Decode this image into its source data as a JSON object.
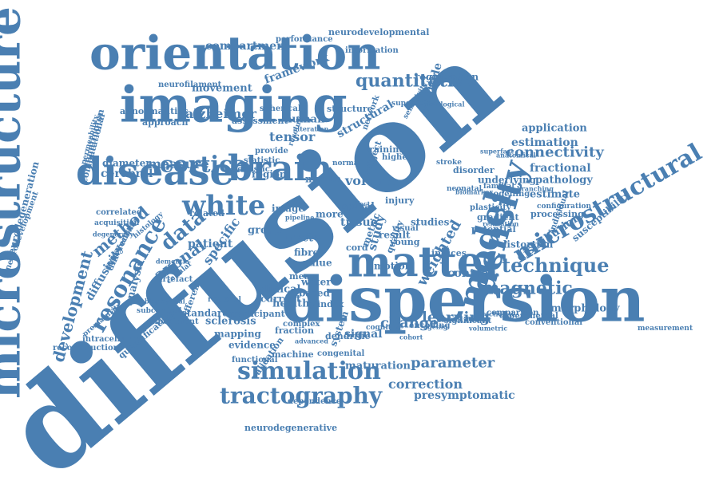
{
  "color": "#4a7fb2",
  "words": [
    "diffusion",
    "dispersion",
    "orientation",
    "imaging",
    "microstructure",
    "disease",
    "brain",
    "matter",
    "model",
    "density",
    "microstructural",
    "simulation",
    "tractography",
    "cortical",
    "white",
    "development",
    "resonance",
    "technique",
    "magnetic",
    "parameter",
    "data",
    "method",
    "connectivity",
    "axonal",
    "alzheimer",
    "quantitative",
    "compartment",
    "framework",
    "registration",
    "tensor",
    "diffusivity",
    "volume",
    "weighted",
    "correction",
    "presymptomatic",
    "signal",
    "change",
    "learning",
    "estimation",
    "application",
    "fractional",
    "pathology",
    "estimate",
    "distribution",
    "susceptibility",
    "morphology",
    "control",
    "distortion",
    "performance",
    "neurodevelopmental",
    "information",
    "movement",
    "neurofilament",
    "abnormalities",
    "assessment",
    "spherical",
    "structure",
    "approach",
    "human",
    "computational",
    "huntington",
    "measure",
    "cerebral",
    "diameter",
    "region",
    "myelin",
    "image",
    "related",
    "group",
    "tissue",
    "spinal",
    "studies",
    "specific",
    "patient",
    "clinical",
    "healthy",
    "sclerosis",
    "mapping",
    "evidence",
    "current",
    "standard",
    "different",
    "analysis",
    "intracellular",
    "reconstruction",
    "quantification",
    "experiment",
    "functional",
    "validation",
    "machine",
    "neurodegenerative",
    "dependence",
    "maturation",
    "congenital",
    "experimental",
    "conventional",
    "comparison",
    "significant",
    "dendritic",
    "cognitive",
    "cord",
    "structural",
    "multiple",
    "network",
    "underlying",
    "modelling",
    "plasticity",
    "processing",
    "individual",
    "potential",
    "indices",
    "study",
    "result",
    "fibre",
    "value",
    "water",
    "based",
    "index",
    "fraction",
    "complex",
    "fixel",
    "tract",
    "mean",
    "neurodegeneration",
    "neurodevelopment",
    "permeability",
    "correlated",
    "acquisition",
    "degeneracy",
    "histology",
    "reproducibility",
    "artefact",
    "cellular",
    "regional",
    "subcortical",
    "biophysical",
    "prematurity",
    "difference",
    "superficial",
    "histological",
    "sensitivity",
    "statistic",
    "provide",
    "realistic",
    "training",
    "higher",
    "subject",
    "motion",
    "injury",
    "visual",
    "disorder",
    "measurement",
    "directional",
    "young",
    "normal",
    "alteration",
    "resolution",
    "effect",
    "system",
    "metric",
    "quality",
    "more",
    "advanced",
    "participant",
    "pipeline",
    "dementia",
    "gradient",
    "encoding",
    "cohort",
    "ageing",
    "familial",
    "neonatal",
    "configuration",
    "branching",
    "relaxation",
    "biomarker",
    "superfast",
    "anatomical",
    "volumetric",
    "stroke"
  ]
}
